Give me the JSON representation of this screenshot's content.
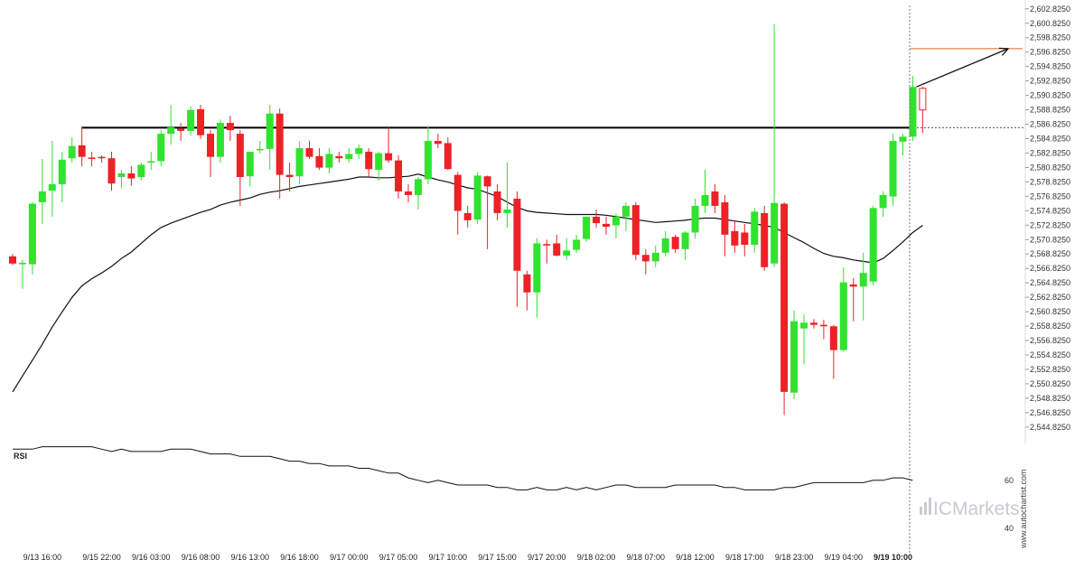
{
  "colors": {
    "up": "#31e22f",
    "down": "#ee2127",
    "ma": "#111111",
    "resistance": "#000000",
    "target": "#e8641b",
    "rsi": "#111111",
    "logo": "#c7ccd2"
  },
  "watermark": "www.autochartist.com",
  "logo": {
    "text": "ICMarkets",
    "icon": "bar-signal-icon"
  },
  "chart_data": {
    "type": "candlestick",
    "y_axis": {
      "ylim": [
        2543.8,
        2603.3
      ],
      "tick_labels": [
        "2,544.8250",
        "2,546.8250",
        "2,548.8250",
        "2,550.8250",
        "2,552.8250",
        "2,554.8250",
        "2,556.8250",
        "2,558.8250",
        "2,560.8250",
        "2,562.8250",
        "2,564.8250",
        "2,566.8250",
        "2,568.8250",
        "2,570.8250",
        "2,572.8250",
        "2,574.8250",
        "2,576.8250",
        "2,578.8250",
        "2,580.8250",
        "2,582.8250",
        "2,584.8250",
        "2,586.8250",
        "2,588.8250",
        "2,590.8250",
        "2,592.8250",
        "2,594.8250",
        "2,596.8250",
        "2,598.8250",
        "2,600.8250",
        "2,602.8250"
      ]
    },
    "x_tick_labels": [
      {
        "label": "9/13 16:00",
        "i": 3
      },
      {
        "label": "9/15 22:00",
        "i": 9
      },
      {
        "label": "9/16 03:00",
        "i": 14
      },
      {
        "label": "9/16 08:00",
        "i": 19
      },
      {
        "label": "9/16 13:00",
        "i": 24
      },
      {
        "label": "9/16 18:00",
        "i": 29
      },
      {
        "label": "9/17 00:00",
        "i": 34
      },
      {
        "label": "9/17 05:00",
        "i": 39
      },
      {
        "label": "9/17 10:00",
        "i": 44
      },
      {
        "label": "9/17 15:00",
        "i": 49
      },
      {
        "label": "9/17 20:00",
        "i": 54
      },
      {
        "label": "9/18 02:00",
        "i": 59
      },
      {
        "label": "9/18 07:00",
        "i": 64
      },
      {
        "label": "9/18 12:00",
        "i": 69
      },
      {
        "label": "9/18 17:00",
        "i": 74
      },
      {
        "label": "9/18 23:00",
        "i": 79
      },
      {
        "label": "9/19 04:00",
        "i": 84
      },
      {
        "label": "9/19 10:00",
        "i": 89,
        "highlight": true
      }
    ],
    "candles": [
      {
        "o": 2568.5,
        "h": 2568.8,
        "l": 2567.3,
        "c": 2567.5
      },
      {
        "o": 2567.4,
        "h": 2568.0,
        "l": 2564.0,
        "c": 2567.6
      },
      {
        "o": 2567.4,
        "h": 2576.0,
        "l": 2566.0,
        "c": 2575.8
      },
      {
        "o": 2576.0,
        "h": 2582.0,
        "l": 2573.0,
        "c": 2577.5
      },
      {
        "o": 2577.6,
        "h": 2584.5,
        "l": 2574.0,
        "c": 2578.5
      },
      {
        "o": 2578.5,
        "h": 2583.0,
        "l": 2576.0,
        "c": 2581.9
      },
      {
        "o": 2582.1,
        "h": 2585.0,
        "l": 2581.5,
        "c": 2583.8
      },
      {
        "o": 2583.9,
        "h": 2586.5,
        "l": 2581.0,
        "c": 2582.3
      },
      {
        "o": 2582.2,
        "h": 2583.0,
        "l": 2581.0,
        "c": 2582.0
      },
      {
        "o": 2582.3,
        "h": 2582.5,
        "l": 2581.5,
        "c": 2582.1
      },
      {
        "o": 2582.1,
        "h": 2583.0,
        "l": 2577.6,
        "c": 2578.6
      },
      {
        "o": 2579.5,
        "h": 2580.5,
        "l": 2578.0,
        "c": 2580.0
      },
      {
        "o": 2580.0,
        "h": 2581.0,
        "l": 2578.3,
        "c": 2579.3
      },
      {
        "o": 2579.5,
        "h": 2581.5,
        "l": 2579.0,
        "c": 2581.2
      },
      {
        "o": 2581.5,
        "h": 2583.0,
        "l": 2580.5,
        "c": 2581.7
      },
      {
        "o": 2581.7,
        "h": 2586.0,
        "l": 2581.0,
        "c": 2585.5
      },
      {
        "o": 2585.5,
        "h": 2589.5,
        "l": 2584.0,
        "c": 2586.4
      },
      {
        "o": 2586.2,
        "h": 2587.0,
        "l": 2584.5,
        "c": 2585.9
      },
      {
        "o": 2585.9,
        "h": 2589.3,
        "l": 2585.2,
        "c": 2588.8
      },
      {
        "o": 2588.9,
        "h": 2589.5,
        "l": 2584.8,
        "c": 2585.3
      },
      {
        "o": 2585.5,
        "h": 2586.0,
        "l": 2579.5,
        "c": 2582.3
      },
      {
        "o": 2582.3,
        "h": 2587.5,
        "l": 2581.5,
        "c": 2587.0
      },
      {
        "o": 2587.0,
        "h": 2588.0,
        "l": 2584.5,
        "c": 2586.0
      },
      {
        "o": 2585.5,
        "h": 2586.0,
        "l": 2575.5,
        "c": 2579.5
      },
      {
        "o": 2579.6,
        "h": 2583.0,
        "l": 2578.2,
        "c": 2583.0
      },
      {
        "o": 2583.2,
        "h": 2584.5,
        "l": 2582.8,
        "c": 2583.4
      },
      {
        "o": 2583.4,
        "h": 2589.5,
        "l": 2580.5,
        "c": 2588.3
      },
      {
        "o": 2588.3,
        "h": 2589.0,
        "l": 2576.5,
        "c": 2579.8
      },
      {
        "o": 2579.8,
        "h": 2581.5,
        "l": 2577.5,
        "c": 2579.5
      },
      {
        "o": 2579.6,
        "h": 2584.5,
        "l": 2578.5,
        "c": 2583.5
      },
      {
        "o": 2583.5,
        "h": 2584.5,
        "l": 2582.0,
        "c": 2582.3
      },
      {
        "o": 2582.4,
        "h": 2583.5,
        "l": 2580.5,
        "c": 2580.8
      },
      {
        "o": 2580.8,
        "h": 2583.5,
        "l": 2580.0,
        "c": 2582.7
      },
      {
        "o": 2582.4,
        "h": 2583.0,
        "l": 2581.5,
        "c": 2582.1
      },
      {
        "o": 2582.0,
        "h": 2583.5,
        "l": 2581.5,
        "c": 2582.7
      },
      {
        "o": 2582.7,
        "h": 2584.0,
        "l": 2582.0,
        "c": 2583.5
      },
      {
        "o": 2583.0,
        "h": 2583.5,
        "l": 2579.5,
        "c": 2580.6
      },
      {
        "o": 2580.5,
        "h": 2583.0,
        "l": 2579.0,
        "c": 2582.8
      },
      {
        "o": 2582.8,
        "h": 2586.5,
        "l": 2581.5,
        "c": 2581.8
      },
      {
        "o": 2581.8,
        "h": 2582.5,
        "l": 2576.5,
        "c": 2577.5
      },
      {
        "o": 2577.5,
        "h": 2578.5,
        "l": 2576.0,
        "c": 2577.0
      },
      {
        "o": 2577.0,
        "h": 2579.5,
        "l": 2575.0,
        "c": 2579.2
      },
      {
        "o": 2579.2,
        "h": 2586.5,
        "l": 2578.5,
        "c": 2584.5
      },
      {
        "o": 2584.5,
        "h": 2585.5,
        "l": 2583.5,
        "c": 2584.1
      },
      {
        "o": 2584.2,
        "h": 2585.0,
        "l": 2580.5,
        "c": 2580.6
      },
      {
        "o": 2579.8,
        "h": 2580.2,
        "l": 2571.5,
        "c": 2574.8
      },
      {
        "o": 2574.5,
        "h": 2575.5,
        "l": 2572.5,
        "c": 2573.5
      },
      {
        "o": 2573.6,
        "h": 2580.2,
        "l": 2573.0,
        "c": 2579.7
      },
      {
        "o": 2579.6,
        "h": 2579.7,
        "l": 2569.5,
        "c": 2578.2
      },
      {
        "o": 2577.5,
        "h": 2578.5,
        "l": 2573.5,
        "c": 2574.5
      },
      {
        "o": 2574.5,
        "h": 2581.5,
        "l": 2572.5,
        "c": 2575.0
      },
      {
        "o": 2576.5,
        "h": 2577.5,
        "l": 2561.5,
        "c": 2566.5
      },
      {
        "o": 2566.0,
        "h": 2566.5,
        "l": 2561.0,
        "c": 2563.5
      },
      {
        "o": 2563.5,
        "h": 2571.0,
        "l": 2560.0,
        "c": 2570.3
      },
      {
        "o": 2570.2,
        "h": 2570.8,
        "l": 2567.5,
        "c": 2570.0
      },
      {
        "o": 2570.3,
        "h": 2571.5,
        "l": 2568.5,
        "c": 2568.6
      },
      {
        "o": 2568.6,
        "h": 2571.0,
        "l": 2568.0,
        "c": 2569.3
      },
      {
        "o": 2569.4,
        "h": 2571.5,
        "l": 2569.0,
        "c": 2570.8
      },
      {
        "o": 2570.9,
        "h": 2574.0,
        "l": 2570.5,
        "c": 2574.0
      },
      {
        "o": 2574.0,
        "h": 2575.0,
        "l": 2572.5,
        "c": 2573.1
      },
      {
        "o": 2573.0,
        "h": 2574.0,
        "l": 2571.5,
        "c": 2572.6
      },
      {
        "o": 2572.8,
        "h": 2574.5,
        "l": 2571.0,
        "c": 2574.0
      },
      {
        "o": 2574.0,
        "h": 2576.0,
        "l": 2572.0,
        "c": 2575.5
      },
      {
        "o": 2575.6,
        "h": 2576.0,
        "l": 2568.0,
        "c": 2568.7
      },
      {
        "o": 2568.7,
        "h": 2569.5,
        "l": 2566.0,
        "c": 2567.8
      },
      {
        "o": 2567.8,
        "h": 2570.0,
        "l": 2567.0,
        "c": 2569.0
      },
      {
        "o": 2569.0,
        "h": 2572.0,
        "l": 2568.5,
        "c": 2571.0
      },
      {
        "o": 2571.2,
        "h": 2571.5,
        "l": 2569.0,
        "c": 2569.5
      },
      {
        "o": 2569.5,
        "h": 2572.0,
        "l": 2568.0,
        "c": 2571.8
      },
      {
        "o": 2571.8,
        "h": 2576.5,
        "l": 2571.0,
        "c": 2575.5
      },
      {
        "o": 2575.5,
        "h": 2580.5,
        "l": 2574.5,
        "c": 2577.0
      },
      {
        "o": 2577.5,
        "h": 2578.5,
        "l": 2574.5,
        "c": 2575.5
      },
      {
        "o": 2576.0,
        "h": 2577.0,
        "l": 2568.5,
        "c": 2571.5
      },
      {
        "o": 2572.0,
        "h": 2573.5,
        "l": 2569.0,
        "c": 2570.0
      },
      {
        "o": 2571.8,
        "h": 2573.0,
        "l": 2568.5,
        "c": 2570.1
      },
      {
        "o": 2570.1,
        "h": 2575.2,
        "l": 2569.0,
        "c": 2574.7
      },
      {
        "o": 2574.5,
        "h": 2575.5,
        "l": 2566.5,
        "c": 2567.0
      },
      {
        "o": 2567.5,
        "h": 2600.7,
        "l": 2567.0,
        "c": 2575.9
      },
      {
        "o": 2575.8,
        "h": 2576.0,
        "l": 2546.5,
        "c": 2549.7
      },
      {
        "o": 2549.6,
        "h": 2561.0,
        "l": 2548.7,
        "c": 2559.5
      },
      {
        "o": 2558.5,
        "h": 2560.5,
        "l": 2553.5,
        "c": 2559.3
      },
      {
        "o": 2559.3,
        "h": 2559.8,
        "l": 2558.5,
        "c": 2559.0
      },
      {
        "o": 2559.0,
        "h": 2559.7,
        "l": 2557.0,
        "c": 2558.8
      },
      {
        "o": 2558.8,
        "h": 2559.0,
        "l": 2551.5,
        "c": 2555.5
      },
      {
        "o": 2555.5,
        "h": 2567.0,
        "l": 2555.3,
        "c": 2564.9
      },
      {
        "o": 2564.6,
        "h": 2565.5,
        "l": 2559.5,
        "c": 2564.3
      },
      {
        "o": 2564.3,
        "h": 2569.0,
        "l": 2559.6,
        "c": 2566.2
      },
      {
        "o": 2565.0,
        "h": 2575.5,
        "l": 2564.5,
        "c": 2575.2
      },
      {
        "o": 2575.2,
        "h": 2577.5,
        "l": 2574.0,
        "c": 2577.0
      },
      {
        "o": 2576.8,
        "h": 2585.5,
        "l": 2575.5,
        "c": 2584.5
      },
      {
        "o": 2584.4,
        "h": 2585.5,
        "l": 2582.5,
        "c": 2585.1
      },
      {
        "o": 2585.1,
        "h": 2593.5,
        "l": 2584.5,
        "c": 2592.0
      },
      {
        "o": 2591.8,
        "h": 2592.0,
        "l": 2585.6,
        "c": 2588.8,
        "projected": true
      }
    ],
    "moving_average": [
      2549.7,
      2551.9,
      2554.1,
      2556.3,
      2558.7,
      2560.8,
      2562.8,
      2564.4,
      2565.4,
      2566.2,
      2567.1,
      2568.2,
      2569.1,
      2570.3,
      2571.5,
      2572.5,
      2573.1,
      2573.6,
      2574.1,
      2574.6,
      2575.0,
      2575.6,
      2576.0,
      2576.3,
      2576.6,
      2577.1,
      2577.4,
      2577.6,
      2577.9,
      2578.2,
      2578.4,
      2578.6,
      2578.8,
      2579.0,
      2579.2,
      2579.5,
      2579.5,
      2579.4,
      2579.4,
      2579.5,
      2579.6,
      2579.9,
      2579.5,
      2579.1,
      2578.8,
      2578.4,
      2578.0,
      2577.8,
      2577.3,
      2576.8,
      2576.0,
      2575.3,
      2574.8,
      2574.6,
      2574.5,
      2574.4,
      2574.3,
      2574.3,
      2574.3,
      2574.3,
      2574.2,
      2574.0,
      2573.8,
      2573.6,
      2573.4,
      2573.2,
      2573.3,
      2573.4,
      2573.5,
      2573.7,
      2573.8,
      2573.8,
      2573.6,
      2573.4,
      2573.2,
      2573.0,
      2572.8,
      2572.5,
      2571.8,
      2571.1,
      2570.4,
      2569.6,
      2568.9,
      2568.5,
      2568.3,
      2568.0,
      2567.8,
      2567.6,
      2568.2,
      2569.3,
      2570.5,
      2571.8,
      2572.8
    ],
    "resistance_level": 2586.35,
    "resistance_start_index": 7,
    "target_level": 2597.3,
    "rsi": {
      "title": "RSI",
      "ylim": [
        35,
        75
      ],
      "tick_labels": [
        "60",
        "40"
      ],
      "tick_values": [
        60,
        40
      ],
      "values": [
        73,
        73,
        73,
        74,
        74,
        74,
        74,
        74,
        74,
        73,
        72,
        73,
        72,
        72,
        72,
        72,
        73,
        73,
        73,
        72,
        71,
        71,
        71,
        70,
        70,
        70,
        70,
        69,
        68,
        68,
        67,
        67,
        66,
        66,
        66,
        65,
        65,
        64,
        63,
        63,
        61,
        60,
        59,
        60,
        59,
        58,
        58,
        58,
        58,
        57,
        57,
        56,
        56,
        57,
        56,
        56,
        57,
        56,
        57,
        56,
        57,
        58,
        58,
        57,
        57,
        57,
        57,
        58,
        58,
        58,
        58,
        58,
        57,
        57,
        56,
        56,
        56,
        56,
        57,
        57,
        58,
        59,
        59,
        59,
        59,
        59,
        59,
        60,
        60,
        61,
        61,
        60
      ]
    }
  }
}
